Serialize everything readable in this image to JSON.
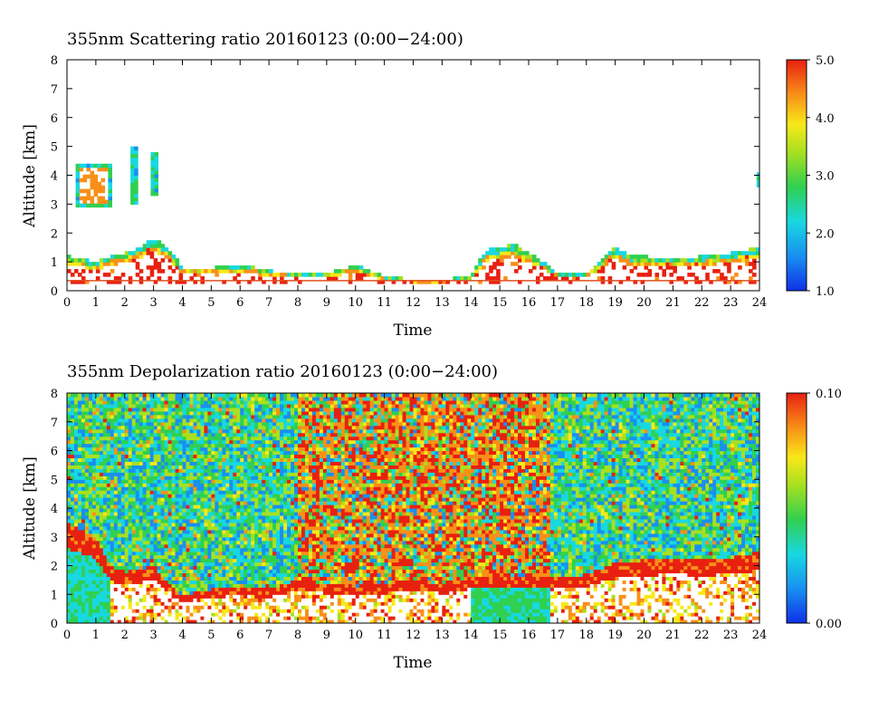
{
  "chart_data": [
    {
      "type": "heatmap",
      "title": "355nm Scattering ratio  20160123 (0:00−24:00)",
      "xlabel": "Time",
      "ylabel": "Altitude [km]",
      "xlim": [
        0,
        24
      ],
      "ylim": [
        0,
        8
      ],
      "x_ticks": [
        0,
        1,
        2,
        3,
        4,
        5,
        6,
        7,
        8,
        9,
        10,
        11,
        12,
        13,
        14,
        15,
        16,
        17,
        18,
        19,
        20,
        21,
        22,
        23,
        24
      ],
      "y_ticks": [
        0,
        1,
        2,
        3,
        4,
        5,
        6,
        7,
        8
      ],
      "colorbar": {
        "min": 1.0,
        "max": 5.0,
        "tick_values": [
          1.0,
          2.0,
          3.0,
          4.0,
          5.0
        ],
        "tick_labels": [
          "1.0",
          "2.0",
          "3.0",
          "4.0",
          "5.0"
        ]
      },
      "boundary_layer_top_km": [
        [
          0,
          1.2
        ],
        [
          0.5,
          1.1
        ],
        [
          1,
          1.0
        ],
        [
          1.5,
          1.2
        ],
        [
          2,
          1.3
        ],
        [
          2.5,
          1.5
        ],
        [
          3,
          1.8
        ],
        [
          3.5,
          1.5
        ],
        [
          4,
          0.8
        ],
        [
          5,
          0.8
        ],
        [
          6,
          0.9
        ],
        [
          7,
          0.7
        ],
        [
          8,
          0.6
        ],
        [
          9,
          0.6
        ],
        [
          10,
          0.9
        ],
        [
          10.5,
          0.7
        ],
        [
          11,
          0.5
        ],
        [
          12,
          0.4
        ],
        [
          13,
          0.4
        ],
        [
          14,
          0.5
        ],
        [
          14.5,
          1.4
        ],
        [
          15,
          1.5
        ],
        [
          15.5,
          1.6
        ],
        [
          16,
          1.3
        ],
        [
          16.5,
          1.0
        ],
        [
          17,
          0.6
        ],
        [
          18,
          0.6
        ],
        [
          18.5,
          1.1
        ],
        [
          19,
          1.5
        ],
        [
          19.5,
          1.2
        ],
        [
          20,
          1.2
        ],
        [
          21,
          1.1
        ],
        [
          22,
          1.2
        ],
        [
          23,
          1.3
        ],
        [
          24,
          1.5
        ]
      ],
      "cloud_patches_km": [
        {
          "t0": 0.3,
          "t1": 1.5,
          "z0": 2.9,
          "z1": 4.3
        },
        {
          "t0": 2.2,
          "t1": 2.4,
          "z0": 3.0,
          "z1": 4.9
        },
        {
          "t0": 2.9,
          "t1": 3.1,
          "z0": 3.3,
          "z1": 4.8
        },
        {
          "t0": 23.9,
          "t1": 24.0,
          "z0": 3.6,
          "z1": 4.0
        }
      ],
      "surface_line_km": 0.35
    },
    {
      "type": "heatmap",
      "title": "355nm Depolarization ratio  20160123 (0:00−24:00)",
      "xlabel": "Time",
      "ylabel": "Altitude [km]",
      "xlim": [
        0,
        24
      ],
      "ylim": [
        0,
        8
      ],
      "x_ticks": [
        0,
        1,
        2,
        3,
        4,
        5,
        6,
        7,
        8,
        9,
        10,
        11,
        12,
        13,
        14,
        15,
        16,
        17,
        18,
        19,
        20,
        21,
        22,
        23,
        24
      ],
      "y_ticks": [
        0,
        1,
        2,
        3,
        4,
        5,
        6,
        7,
        8
      ],
      "colorbar": {
        "min": 0.0,
        "max": 0.1,
        "tick_values": [
          0.0,
          0.1
        ],
        "tick_labels": [
          "0.00",
          "0.10"
        ]
      },
      "high_noise_regions_h": [
        [
          8.0,
          16.8
        ]
      ],
      "boundary_layer_top_km": [
        [
          0,
          3.5
        ],
        [
          1,
          3.0
        ],
        [
          1.5,
          2.0
        ],
        [
          2,
          1.8
        ],
        [
          3,
          2.0
        ],
        [
          4,
          1.0
        ],
        [
          5,
          1.2
        ],
        [
          6,
          1.3
        ],
        [
          7,
          1.2
        ],
        [
          8,
          1.5
        ],
        [
          9,
          1.4
        ],
        [
          10,
          1.3
        ],
        [
          11,
          1.4
        ],
        [
          12,
          1.5
        ],
        [
          13,
          1.4
        ],
        [
          14,
          1.6
        ],
        [
          15,
          1.6
        ],
        [
          16,
          1.7
        ],
        [
          17,
          1.6
        ],
        [
          18,
          1.7
        ],
        [
          19,
          2.1
        ],
        [
          20,
          2.2
        ],
        [
          21,
          2.3
        ],
        [
          22,
          2.2
        ],
        [
          23,
          2.3
        ],
        [
          24,
          2.5
        ]
      ]
    }
  ]
}
